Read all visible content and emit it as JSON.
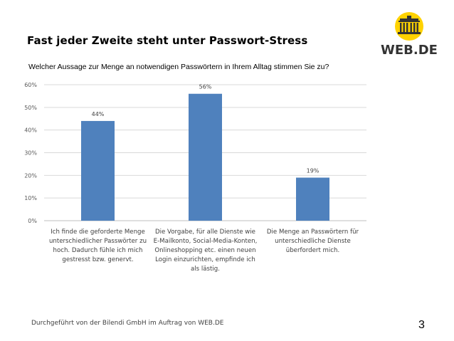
{
  "header": {
    "title": "Fast jeder Zweite steht unter Passwort-Stress",
    "logo_text": "WEB.DE"
  },
  "colors": {
    "bar": "#4f81bd",
    "logo_yellow": "#ffd200",
    "logo_dark": "#333333",
    "gridline": "#d9d9d9"
  },
  "chart_data": {
    "type": "bar",
    "title": "Welcher Aussage zur Menge an notwendigen Passwörtern in Ihrem Alltag stimmen Sie zu?",
    "categories": [
      "Ich finde die geforderte Menge unterschiedlicher Passwörter zu hoch. Dadurch fühle ich mich gestresst bzw. genervt.",
      "Die Vorgabe, für alle Dienste wie E-Mailkonto, Social-Media-Konten, Onlineshopping etc. einen neuen Login einzurichten, empfinde ich als lästig.",
      "Die Menge an Passwörtern für unterschiedliche Dienste überfordert mich."
    ],
    "category_lines": [
      [
        "Ich finde die geforderte Menge",
        "unterschiedlicher Passwörter zu",
        "hoch. Dadurch fühle ich mich",
        "gestresst bzw. genervt."
      ],
      [
        "Die Vorgabe, für alle Dienste wie",
        "E-Mailkonto, Social-Media-Konten,",
        "Onlineshopping etc. einen neuen",
        "Login einzurichten, empfinde ich",
        "als lästig."
      ],
      [
        "Die Menge an Passwörtern für",
        "unterschiedliche Dienste",
        "überfordert mich."
      ]
    ],
    "values": [
      44,
      56,
      19
    ],
    "value_labels": [
      "44%",
      "56%",
      "19%"
    ],
    "ylim": [
      0,
      60
    ],
    "yticks": [
      0,
      10,
      20,
      30,
      40,
      50,
      60
    ],
    "ytick_labels": [
      "0%",
      "10%",
      "20%",
      "30%",
      "40%",
      "50%",
      "60%"
    ],
    "grid": true
  },
  "footer": {
    "source": "Durchgeführt von der Bilendi GmbH im Auftrag von WEB.DE",
    "page_number": "3"
  }
}
